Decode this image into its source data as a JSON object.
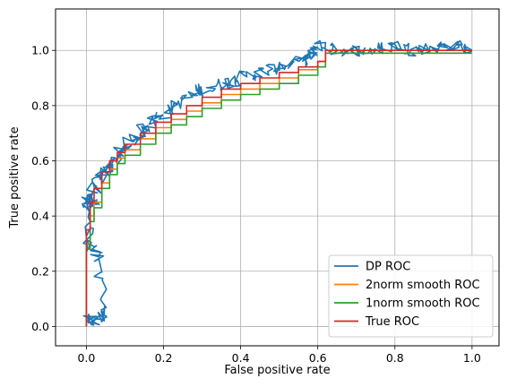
{
  "chart_data": {
    "type": "line",
    "title": "",
    "xlabel": "False positive rate",
    "ylabel": "True positive rate",
    "xlim": [
      -0.08,
      1.07
    ],
    "ylim": [
      -0.07,
      1.15
    ],
    "xticks": [
      "0.0",
      "0.2",
      "0.4",
      "0.6",
      "0.8",
      "1.0"
    ],
    "yticks": [
      "0.0",
      "0.2",
      "0.4",
      "0.6",
      "0.8",
      "1.0"
    ],
    "grid": true,
    "legend_position": "lower right",
    "series": [
      {
        "name": "DP ROC",
        "color": "#1f77b4",
        "noisy": true,
        "x": [
          0.0,
          0.02,
          0.05,
          0.03,
          0.01,
          0.0,
          0.02,
          0.0,
          0.03,
          0.05,
          0.08,
          0.1,
          0.13,
          0.16,
          0.2,
          0.25,
          0.3,
          0.35,
          0.4,
          0.45,
          0.5,
          0.55,
          0.58,
          0.6,
          0.65,
          0.7,
          0.75,
          0.8,
          0.85,
          0.9,
          0.95,
          1.0
        ],
        "y": [
          0.02,
          0.02,
          0.05,
          0.25,
          0.3,
          0.44,
          0.45,
          0.47,
          0.52,
          0.56,
          0.61,
          0.65,
          0.69,
          0.73,
          0.77,
          0.82,
          0.86,
          0.88,
          0.9,
          0.92,
          0.94,
          0.96,
          0.98,
          1.02,
          1.0,
          1.0,
          1.0,
          1.02,
          1.0,
          1.01,
          1.02,
          1.0
        ]
      },
      {
        "name": "2norm smooth ROC",
        "color": "#ff7f0e",
        "x": [
          0.0,
          0.0,
          0.01,
          0.02,
          0.04,
          0.06,
          0.08,
          0.1,
          0.14,
          0.18,
          0.22,
          0.26,
          0.3,
          0.35,
          0.4,
          0.45,
          0.5,
          0.55,
          0.6,
          0.62,
          0.7,
          0.8,
          0.9,
          1.0
        ],
        "y": [
          0.0,
          0.3,
          0.4,
          0.45,
          0.52,
          0.57,
          0.61,
          0.64,
          0.68,
          0.72,
          0.75,
          0.78,
          0.81,
          0.84,
          0.86,
          0.88,
          0.9,
          0.93,
          0.96,
          0.99,
          0.99,
          0.99,
          0.99,
          0.99
        ]
      },
      {
        "name": "1norm smooth ROC",
        "color": "#2ca02c",
        "x": [
          0.0,
          0.0,
          0.01,
          0.02,
          0.04,
          0.06,
          0.08,
          0.1,
          0.14,
          0.18,
          0.22,
          0.26,
          0.3,
          0.35,
          0.4,
          0.45,
          0.5,
          0.55,
          0.6,
          0.62,
          0.7,
          0.8,
          0.9,
          1.0
        ],
        "y": [
          0.0,
          0.28,
          0.38,
          0.43,
          0.5,
          0.55,
          0.59,
          0.62,
          0.66,
          0.7,
          0.73,
          0.76,
          0.79,
          0.82,
          0.84,
          0.86,
          0.88,
          0.91,
          0.94,
          0.99,
          0.99,
          0.99,
          0.99,
          0.99
        ]
      },
      {
        "name": "True ROC",
        "color": "#d62728",
        "x": [
          0.0,
          0.0,
          0.01,
          0.02,
          0.04,
          0.06,
          0.08,
          0.1,
          0.14,
          0.18,
          0.22,
          0.26,
          0.3,
          0.35,
          0.4,
          0.45,
          0.5,
          0.55,
          0.6,
          0.62,
          0.7,
          0.8,
          0.9,
          1.0
        ],
        "y": [
          0.0,
          0.35,
          0.45,
          0.5,
          0.56,
          0.6,
          0.63,
          0.66,
          0.7,
          0.74,
          0.77,
          0.8,
          0.83,
          0.86,
          0.88,
          0.9,
          0.92,
          0.94,
          0.96,
          1.0,
          1.0,
          1.0,
          1.0,
          1.0
        ]
      }
    ]
  }
}
